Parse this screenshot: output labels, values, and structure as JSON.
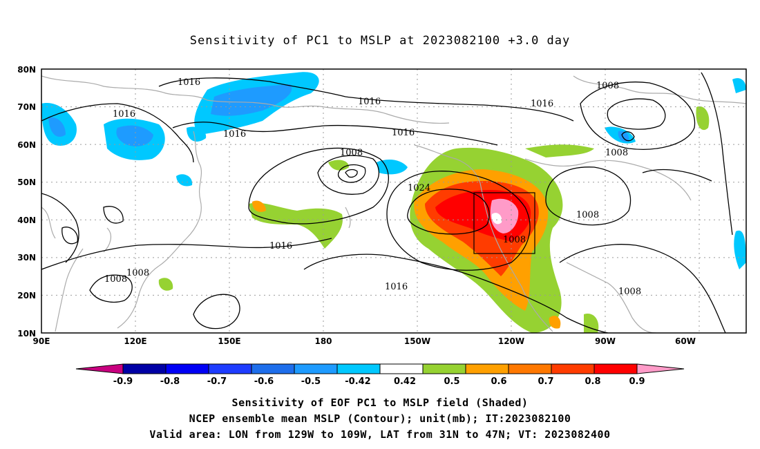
{
  "title": "Sensitivity of PC1 to MSLP at 2023082100 +3.0 day",
  "map": {
    "lat_labels": [
      "80N",
      "70N",
      "60N",
      "50N",
      "40N",
      "30N",
      "20N",
      "10N"
    ],
    "lon_labels": [
      "90E",
      "120E",
      "150E",
      "180",
      "150W",
      "120W",
      "90W",
      "60W"
    ],
    "contour_labels": [
      "1016",
      "1016",
      "1016",
      "1016",
      "1008",
      "1016",
      "1008",
      "1016",
      "1008",
      "1024",
      "1008",
      "1016",
      "1008",
      "1008",
      "1016",
      "1008",
      "1008"
    ],
    "valid_area_box": {
      "lon_from": "129W",
      "lon_to": "109W",
      "lat_from": "31N",
      "lat_to": "47N"
    }
  },
  "colorbar": {
    "ticks": [
      "-0.9",
      "-0.8",
      "-0.7",
      "-0.6",
      "-0.5",
      "-0.42",
      "0.42",
      "0.5",
      "0.6",
      "0.7",
      "0.8",
      "0.9"
    ],
    "colors": [
      "#c8007f",
      "#0000a5",
      "#0000f5",
      "#1e3cff",
      "#1e6eeb",
      "#1e9bff",
      "#00c8ff",
      "#ffffff",
      "#96d232",
      "#ffa000",
      "#ff7800",
      "#ff3c00",
      "#ff0000",
      "#ff9bc8"
    ]
  },
  "caption": {
    "line1": "Sensitivity of EOF PC1 to MSLP field (Shaded)",
    "line2": "NCEP ensemble mean MSLP (Contour); unit(mb); IT:2023082100",
    "line3": "Valid area: LON from 129W to 109W, LAT from 31N to 47N; VT: 2023082400"
  }
}
